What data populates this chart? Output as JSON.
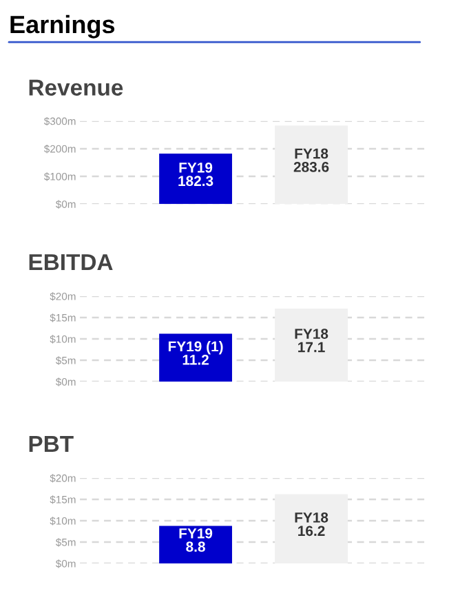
{
  "chart_data": [
    {
      "type": "bar",
      "title": "Earnings",
      "subtitle": "Revenue",
      "categories": [
        "FY19",
        "FY18"
      ],
      "values": [
        182.3,
        283.6
      ],
      "colors": [
        "#0000cc",
        "#f0f0f0"
      ],
      "data_labels": true,
      "ylim": [
        0,
        300
      ],
      "yticks": [
        {
          "value": 0,
          "label": "$0m"
        },
        {
          "value": 100,
          "label": "$100m"
        },
        {
          "value": 200,
          "label": "$200m"
        },
        {
          "value": 300,
          "label": "$300m"
        }
      ],
      "grid": "y",
      "legend": false
    },
    {
      "type": "bar",
      "title": "EBITDA",
      "categories": [
        "FY19 (1)",
        "FY18"
      ],
      "values": [
        11.2,
        17.1
      ],
      "colors": [
        "#0000cc",
        "#f0f0f0"
      ],
      "data_labels": true,
      "ylim": [
        0,
        20
      ],
      "yticks": [
        {
          "value": 0,
          "label": "$0m"
        },
        {
          "value": 5,
          "label": "$5m"
        },
        {
          "value": 10,
          "label": "$10m"
        },
        {
          "value": 15,
          "label": "$15m"
        },
        {
          "value": 20,
          "label": "$20m"
        }
      ],
      "grid": "y",
      "legend": false
    },
    {
      "type": "bar",
      "title": "PBT",
      "categories": [
        "FY19",
        "FY18"
      ],
      "values": [
        8.8,
        16.2
      ],
      "colors": [
        "#0000cc",
        "#f0f0f0"
      ],
      "data_labels": true,
      "ylim": [
        0,
        20
      ],
      "yticks": [
        {
          "value": 0,
          "label": "$0m"
        },
        {
          "value": 5,
          "label": "$5m"
        },
        {
          "value": 10,
          "label": "$10m"
        },
        {
          "value": 15,
          "label": "$15m"
        },
        {
          "value": 20,
          "label": "$20m"
        }
      ],
      "grid": "y",
      "legend": false
    }
  ]
}
